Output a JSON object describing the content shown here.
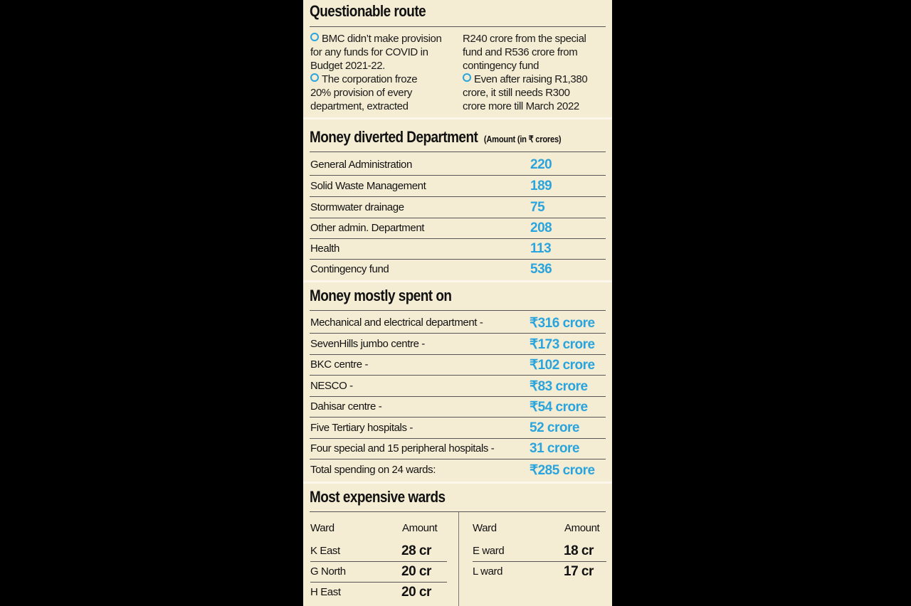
{
  "route": {
    "title": "Questionable route",
    "col1": [
      {
        "lines": [
          "BMC didn’t make provision",
          "for any funds for COVID in",
          "Budget 2021-22."
        ]
      },
      {
        "lines": [
          "The corporation froze",
          "20% provision of every",
          "department, extracted"
        ]
      }
    ],
    "col2": [
      {
        "lines": [
          "R240 crore from the special",
          "fund and R536 crore from",
          "contingency fund"
        ]
      },
      {
        "lines": [
          "Even after raising R1,380",
          "crore, it still needs R300",
          "crore more till March 2022"
        ]
      }
    ]
  },
  "diverted": {
    "title": "Money diverted Department",
    "note": "(Amount (in ₹ crores)",
    "rows": [
      {
        "label": "General Administration",
        "value": "220"
      },
      {
        "label": "Solid Waste Management",
        "value": "189"
      },
      {
        "label": "Stormwater drainage",
        "value": "75"
      },
      {
        "label": "Other admin. Department",
        "value": "208"
      },
      {
        "label": "Health",
        "value": "113"
      },
      {
        "label": "Contingency fund",
        "value": "536"
      }
    ]
  },
  "spent": {
    "title": "Money mostly spent on",
    "rows": [
      {
        "label": "Mechanical and electrical department -",
        "value": "₹316 crore"
      },
      {
        "label": "SevenHills jumbo centre -",
        "value": "₹173 crore"
      },
      {
        "label": "BKC centre -",
        "value": "₹102 crore"
      },
      {
        "label": "NESCO -",
        "value": "₹83 crore"
      },
      {
        "label": "Dahisar centre -",
        "value": "₹54 crore"
      },
      {
        "label": "Five Tertiary hospitals -",
        "value": "52 crore"
      },
      {
        "label": "Four special and 15 peripheral hospitals -",
        "value": "31 crore"
      },
      {
        "label": "Total spending on 24 wards:",
        "value": "₹285 crore"
      }
    ]
  },
  "wards": {
    "title": "Most expensive wards",
    "ward_header": "Ward",
    "amount_header": "Amount",
    "left": [
      {
        "ward": "K East",
        "amount": "28 cr"
      },
      {
        "ward": "G North",
        "amount": "20 cr"
      },
      {
        "ward": "H East",
        "amount": "20 cr"
      }
    ],
    "right": [
      {
        "ward": "E ward",
        "amount": "18 cr"
      },
      {
        "ward": "L ward",
        "amount": "17 cr"
      }
    ]
  }
}
